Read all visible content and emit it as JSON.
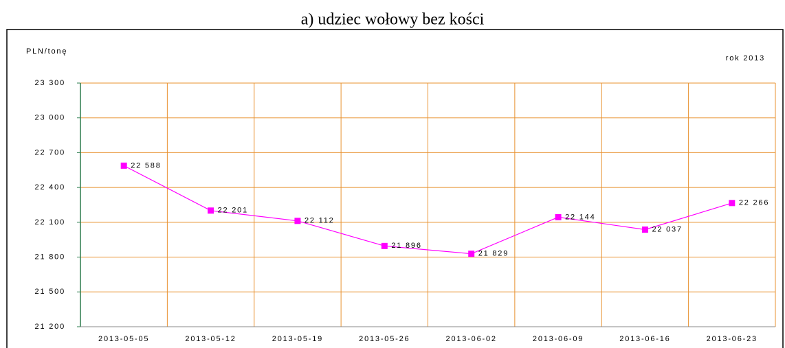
{
  "chart_data": {
    "type": "line",
    "title": "a) udziec wołowy bez kości",
    "ylabel": "PLN/tonę",
    "annotation": "rok 2013",
    "categories": [
      "2013-05-05",
      "2013-05-12",
      "2013-05-19",
      "2013-05-26",
      "2013-06-02",
      "2013-06-09",
      "2013-06-16",
      "2013-06-23"
    ],
    "series": [
      {
        "name": "udziec wołowy bez kości",
        "color": "#ff00ff",
        "values": [
          22588,
          22201,
          22112,
          21896,
          21829,
          22144,
          22037,
          22266
        ],
        "value_labels": [
          "22 588",
          "22 201",
          "22 112",
          "21 896",
          "21 829",
          "22 144",
          "22 037",
          "22 266"
        ]
      }
    ],
    "ylim": [
      21200,
      23300
    ],
    "yticks": [
      {
        "value": 21200,
        "label": "21 200"
      },
      {
        "value": 21500,
        "label": "21 500"
      },
      {
        "value": 21800,
        "label": "21 800"
      },
      {
        "value": 22100,
        "label": "22 100"
      },
      {
        "value": 22400,
        "label": "22 400"
      },
      {
        "value": 22700,
        "label": "22 700"
      },
      {
        "value": 23000,
        "label": "23 000"
      },
      {
        "value": 23300,
        "label": "23 300"
      }
    ],
    "grid": true,
    "grid_color": "#e8902e"
  }
}
